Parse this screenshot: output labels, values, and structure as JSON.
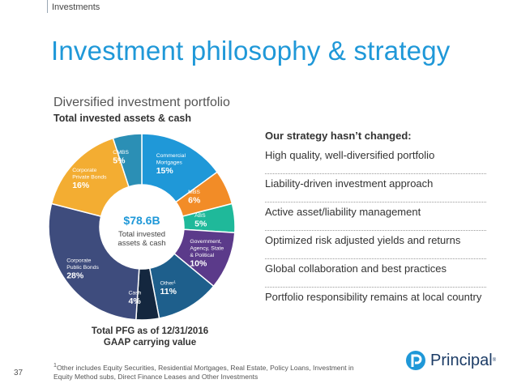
{
  "header": {
    "section": "Investments",
    "title": "Investment philosophy & strategy"
  },
  "portfolio": {
    "subtitle": "Diversified investment portfolio",
    "chart_title": "Total invested assets & cash"
  },
  "chart_data": {
    "type": "pie",
    "title": "Total invested assets & cash",
    "center_value": "$78.6B",
    "center_label": "Total invested assets & cash",
    "categories": [
      "Commercial Mortgages",
      "MBS",
      "ABS",
      "Government, Agency, State & Political",
      "Other¹",
      "Cash",
      "Corporate Public Bonds",
      "Corporate Private Bonds",
      "CMBS"
    ],
    "values": [
      15,
      6,
      5,
      10,
      11,
      4,
      28,
      16,
      5
    ],
    "value_labels": [
      "15%",
      "6%",
      "5%",
      "10%",
      "11%",
      "4%",
      "28%",
      "16%",
      "5%"
    ],
    "colors": [
      "#1f98d8",
      "#f28c27",
      "#1fb99a",
      "#5b3a8a",
      "#1e5f8c",
      "#14273f",
      "#3e4c7d",
      "#f3ad32",
      "#2b8fb5"
    ],
    "label_lines": [
      [
        "Commercial",
        "Mortgages"
      ],
      [
        "MBS"
      ],
      [
        "ABS"
      ],
      [
        "Government,",
        "Agency, State",
        "& Political"
      ],
      [
        "Other¹"
      ],
      [
        "Cash"
      ],
      [
        "Corporate",
        "Public Bonds"
      ],
      [
        "Corporate",
        "Private Bonds"
      ],
      [
        "CMBS"
      ]
    ]
  },
  "caption": {
    "line1": "Total PFG as of 12/31/2016",
    "line2": "GAAP carrying value"
  },
  "strategy": {
    "heading": "Our strategy hasn’t changed:",
    "items": [
      "High quality, well-diversified portfolio",
      "Liability-driven investment approach",
      "Active asset/liability management",
      "Optimized risk adjusted yields and returns",
      "Global collaboration and best practices",
      "Portfolio responsibility remains at local country"
    ]
  },
  "footnote": {
    "marker": "1",
    "text": "Other includes Equity Securities, Residential Mortgages, Real Estate, Policy Loans, Investment in Equity Method subs, Direct Finance Leases and Other Investments"
  },
  "page_number": "37",
  "logo": {
    "text": "Principal",
    "mark": "®",
    "icon": "principal-logo-icon",
    "color": "#1c3c66"
  }
}
